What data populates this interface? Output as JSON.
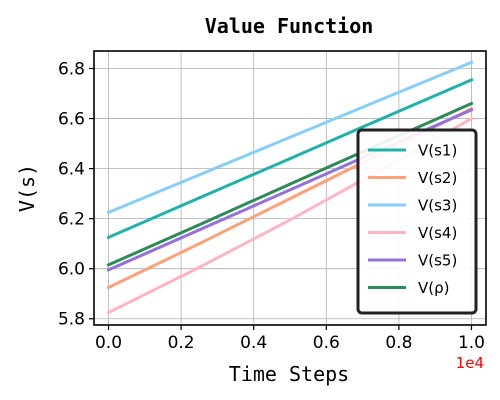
{
  "chart_data": {
    "type": "line",
    "title": "Value Function",
    "xlabel": "Time Steps",
    "ylabel": "V(s)",
    "x_offset_label": "1e4",
    "xlim": [
      -0.04,
      1.04
    ],
    "ylim": [
      5.775,
      6.87
    ],
    "xticks": [
      0.0,
      0.2,
      0.4,
      0.6,
      0.8,
      1.0
    ],
    "xtick_labels": [
      "0.0",
      "0.2",
      "0.4",
      "0.6",
      "0.8",
      "1.0"
    ],
    "yticks": [
      5.8,
      6.0,
      6.2,
      6.4,
      6.6,
      6.8
    ],
    "ytick_labels": [
      "5.8",
      "6.0",
      "6.2",
      "6.4",
      "6.6",
      "6.8"
    ],
    "grid": true,
    "legend_position": "lower-right",
    "x": [
      0.0,
      0.25,
      0.5,
      0.75,
      1.0
    ],
    "series": [
      {
        "name": "V(s1)",
        "color": "#20b2aa",
        "values": [
          6.125,
          6.283,
          6.44,
          6.598,
          6.755
        ]
      },
      {
        "name": "V(s2)",
        "color": "#ffa07a",
        "values": [
          5.925,
          6.1,
          6.28,
          6.46,
          6.64
        ]
      },
      {
        "name": "V(s3)",
        "color": "#87cefa",
        "values": [
          6.225,
          6.375,
          6.525,
          6.675,
          6.825
        ]
      },
      {
        "name": "V(s4)",
        "color": "#ffb6c1",
        "values": [
          5.825,
          6.005,
          6.195,
          6.395,
          6.6
        ]
      },
      {
        "name": "V(s5)",
        "color": "#9370db",
        "values": [
          5.995,
          6.155,
          6.315,
          6.475,
          6.635
        ]
      },
      {
        "name": "V(ρ)",
        "color": "#2e8b57",
        "values": [
          6.015,
          6.176,
          6.338,
          6.499,
          6.66
        ]
      }
    ]
  }
}
